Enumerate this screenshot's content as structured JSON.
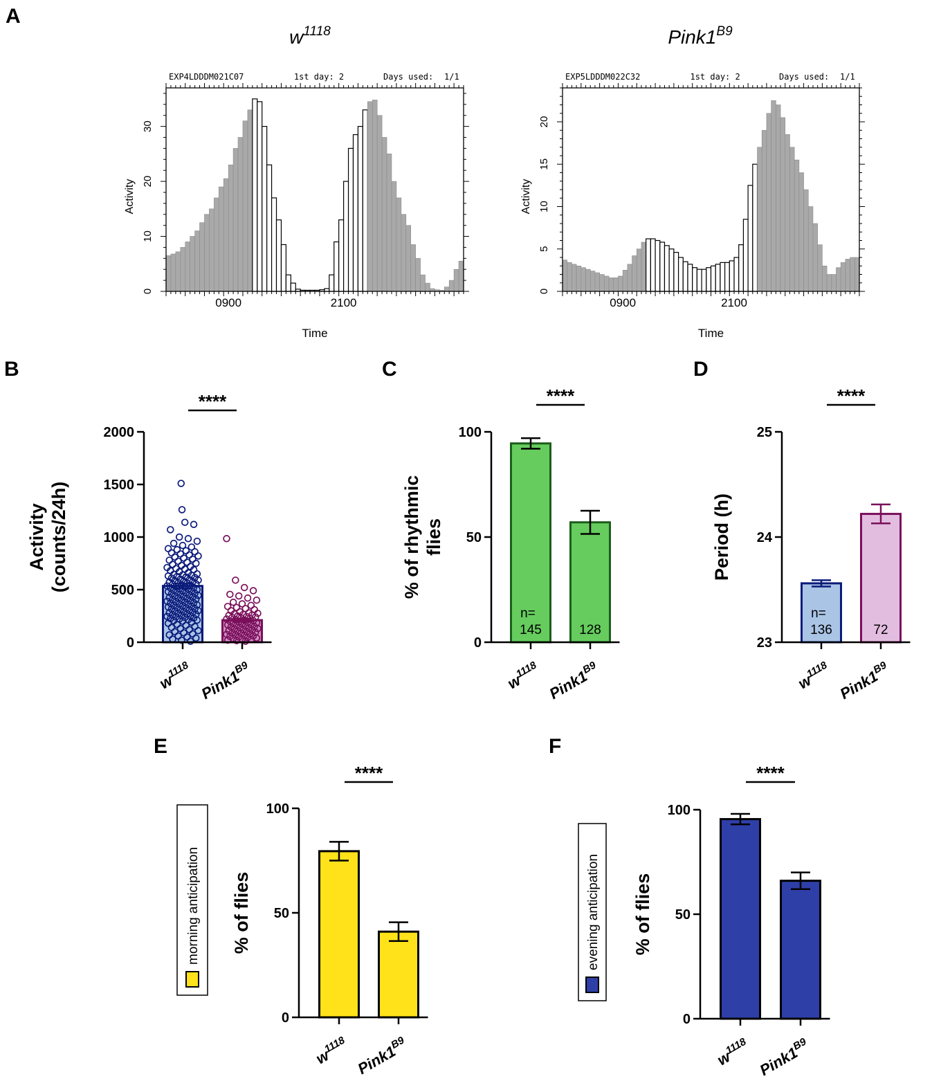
{
  "figure": {
    "panel_labels": [
      "A",
      "B",
      "C",
      "D",
      "E",
      "F"
    ]
  },
  "colors": {
    "gray_bar": "#a9a9a9",
    "white_bar": "#ffffff",
    "bar_stroke": "#000000",
    "b_w1118_fill": "#aac4e6",
    "b_w1118_stroke": "#0a1a7a",
    "b_pink_fill": "#cf8fc4",
    "b_pink_stroke": "#7a0f5a",
    "c_fill": "#66cc5e",
    "c_stroke": "#1b5e1b",
    "d_w1118_fill": "#aac4e6",
    "d_w1118_stroke": "#0a1a7a",
    "d_pink_fill": "#e3bde0",
    "d_pink_stroke": "#7a0f5a",
    "e_fill": "#ffe21a",
    "f_fill": "#2e3fa8"
  },
  "chart_data": [
    {
      "id": "A1",
      "type": "bar",
      "title": "w1118",
      "title_base": "w",
      "title_sup": "1118",
      "header_left": "EXP4LDDDM021C07",
      "header_mid": "1st day: 2",
      "header_right_label": "Days used:",
      "header_right_value": "1/1",
      "xlabel": "Time",
      "ylabel": "Activity",
      "x_ticks": [
        "0900",
        "2100"
      ],
      "y_ticks": [
        "0",
        "10",
        "20",
        "30"
      ],
      "ylim": [
        0,
        37
      ],
      "bins_per_day": 48,
      "light_bins": [
        18,
        41
      ],
      "values": [
        6.5,
        6.8,
        7.2,
        8,
        9,
        10,
        11,
        12.5,
        14,
        15,
        17,
        19,
        20.5,
        23,
        26,
        28,
        31,
        33,
        35,
        34.5,
        30,
        23,
        17,
        13,
        8.5,
        3,
        1.5,
        0.4,
        0.2,
        0.2,
        0.2,
        0.2,
        0.3,
        0.5,
        3,
        9,
        13,
        20,
        26,
        28.5,
        30,
        33,
        34.5,
        34.8,
        32,
        28,
        25,
        20,
        17,
        14,
        12,
        8.5,
        6,
        3,
        1.5,
        0.5,
        0.3,
        0.2,
        0.8,
        2,
        4,
        5.5
      ]
    },
    {
      "id": "A2",
      "type": "bar",
      "title": "Pink1B9",
      "title_base": "Pink1",
      "title_sup": "B9",
      "header_left": "EXP5LDDDM022C32",
      "header_mid": "1st day: 2",
      "header_right_label": "Days used:",
      "header_right_value": "1/1",
      "xlabel": "Time",
      "ylabel": "Activity",
      "x_ticks": [
        "0900",
        "2100"
      ],
      "y_ticks": [
        "0",
        "5",
        "10",
        "15",
        "20"
      ],
      "ylim": [
        0,
        24
      ],
      "bins_per_day": 48,
      "light_bins": [
        18,
        41
      ],
      "values": [
        3.7,
        3.4,
        3.2,
        3.0,
        2.8,
        2.6,
        2.4,
        2.2,
        2.0,
        1.8,
        1.6,
        1.6,
        1.8,
        2.5,
        3.2,
        4.2,
        5.0,
        5.8,
        6.2,
        6.2,
        6.0,
        5.8,
        5.4,
        5.0,
        4.6,
        4.0,
        3.5,
        3.2,
        2.8,
        2.6,
        2.6,
        2.8,
        3.0,
        3.2,
        3.4,
        3.4,
        3.6,
        4.0,
        5.5,
        8.5,
        12.5,
        15,
        17,
        19,
        21,
        22.5,
        22,
        20.5,
        18.5,
        17,
        15.5,
        14,
        12,
        10,
        8,
        5.5,
        3.0,
        2.0,
        2.0,
        2.8,
        3.4,
        3.8,
        4.0,
        4.0
      ]
    },
    {
      "id": "B",
      "type": "bar",
      "ylabel_line1": "Activity",
      "ylabel_line2": "(counts/24h)",
      "categories": [
        {
          "base": "w",
          "sup": "1118"
        },
        {
          "base": "Pink1",
          "sup": "B9"
        }
      ],
      "values": [
        535,
        210
      ],
      "sem": [
        22,
        15
      ],
      "ylim": [
        0,
        2000
      ],
      "y_ticks": [
        "0",
        "500",
        "1000",
        "1500",
        "2000"
      ],
      "significance": "****",
      "points": [
        [
          1510,
          1260,
          1140,
          1120,
          1070,
          1000,
          985,
          960,
          940,
          920,
          905,
          890,
          880,
          870,
          860,
          850,
          840,
          830,
          820,
          810,
          800,
          790,
          780,
          770,
          760,
          750,
          740,
          730,
          720,
          710,
          700,
          695,
          690,
          680,
          670,
          660,
          650,
          645,
          640,
          635,
          630,
          625,
          620,
          615,
          610,
          600,
          595,
          590,
          585,
          580,
          575,
          570,
          565,
          560,
          555,
          550,
          545,
          540,
          535,
          530,
          525,
          520,
          515,
          510,
          505,
          500,
          495,
          490,
          485,
          480,
          475,
          470,
          465,
          460,
          455,
          450,
          445,
          440,
          435,
          430,
          425,
          420,
          415,
          410,
          405,
          400,
          395,
          390,
          385,
          380,
          375,
          370,
          365,
          360,
          355,
          350,
          345,
          340,
          335,
          330,
          325,
          320,
          315,
          310,
          305,
          300,
          295,
          290,
          285,
          280,
          275,
          270,
          265,
          260,
          255,
          250,
          245,
          240,
          235,
          230,
          225,
          220,
          215,
          210,
          205,
          200,
          190,
          180,
          170,
          160,
          150,
          140,
          130,
          120,
          110,
          100,
          90,
          80,
          70,
          60,
          50,
          40,
          30,
          20,
          10
        ],
        [
          985,
          590,
          520,
          490,
          455,
          440,
          420,
          400,
          380,
          365,
          350,
          340,
          330,
          320,
          310,
          300,
          290,
          280,
          275,
          270,
          265,
          260,
          255,
          250,
          245,
          240,
          235,
          230,
          225,
          220,
          215,
          210,
          205,
          200,
          195,
          190,
          185,
          180,
          175,
          170,
          165,
          160,
          155,
          150,
          145,
          140,
          135,
          130,
          125,
          120,
          115,
          110,
          105,
          100,
          95,
          90,
          85,
          80,
          75,
          70,
          65,
          60,
          55,
          50,
          45,
          40,
          35,
          30,
          25,
          20,
          15,
          10
        ]
      ]
    },
    {
      "id": "C",
      "type": "bar",
      "ylabel_line1": "% of rhythmic",
      "ylabel_line2": "flies",
      "categories": [
        {
          "base": "w",
          "sup": "1118"
        },
        {
          "base": "Pink1",
          "sup": "B9"
        }
      ],
      "values": [
        94.5,
        57
      ],
      "sem": [
        2.5,
        5.5
      ],
      "ylim": [
        0,
        100
      ],
      "y_ticks": [
        "0",
        "50",
        "100"
      ],
      "significance": "****",
      "n_prefix": "n=",
      "n_labels": [
        "145",
        "128"
      ]
    },
    {
      "id": "D",
      "type": "bar",
      "ylabel": "Period (h)",
      "categories": [
        {
          "base": "w",
          "sup": "1118"
        },
        {
          "base": "Pink1",
          "sup": "B9"
        }
      ],
      "values": [
        23.56,
        24.22
      ],
      "sem": [
        0.03,
        0.09
      ],
      "ylim": [
        23,
        25
      ],
      "y_ticks": [
        "23",
        "24",
        "25"
      ],
      "significance": "****",
      "n_prefix": "n=",
      "n_labels": [
        "136",
        "72"
      ]
    },
    {
      "id": "E",
      "type": "bar",
      "ylabel": "% of flies",
      "legend": "morning anticipation",
      "categories": [
        {
          "base": "w",
          "sup": "1118"
        },
        {
          "base": "Pink1",
          "sup": "B9"
        }
      ],
      "values": [
        79.5,
        41
      ],
      "sem": [
        4.5,
        4.5
      ],
      "ylim": [
        0,
        100
      ],
      "y_ticks": [
        "0",
        "50",
        "100"
      ],
      "significance": "****"
    },
    {
      "id": "F",
      "type": "bar",
      "ylabel": "% of flies",
      "legend": "evening anticipation",
      "categories": [
        {
          "base": "w",
          "sup": "1118"
        },
        {
          "base": "Pink1",
          "sup": "B9"
        }
      ],
      "values": [
        95.5,
        66
      ],
      "sem": [
        2.5,
        4
      ],
      "ylim": [
        0,
        100
      ],
      "y_ticks": [
        "0",
        "50",
        "100"
      ],
      "significance": "****"
    }
  ]
}
